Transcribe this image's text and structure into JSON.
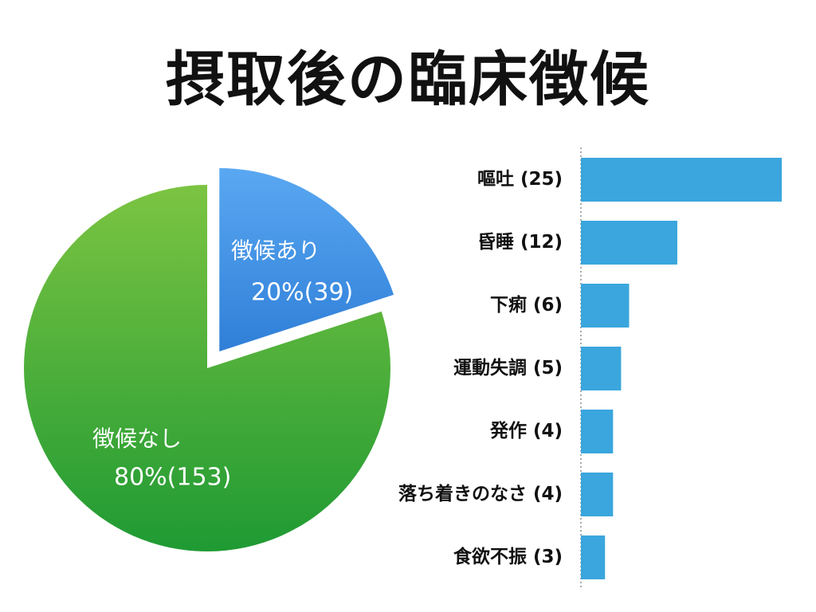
{
  "slide": {
    "title": "摂取後の臨床徴候"
  },
  "chart_data": [
    {
      "type": "pie",
      "slices": [
        {
          "name": "徴候あり",
          "value_label": "20%(39)",
          "percent": 20,
          "count": 39,
          "color": "#2f7fd8",
          "color_light": "#5aa8f2",
          "exploded": true
        },
        {
          "name": "徴候なし",
          "value_label": "80%(153)",
          "percent": 80,
          "count": 153,
          "color": "#1f9a33",
          "color_light": "#7cc442",
          "exploded": false
        }
      ]
    },
    {
      "type": "bar",
      "orientation": "horizontal",
      "color": "#3aa6dd",
      "categories": [
        "嘔吐 (25)",
        "昏睡 (12)",
        "下痢 (6)",
        "運動失調 (5)",
        "発作 (4)",
        "落ち着きのなさ (4)",
        "食欲不振 (3)"
      ],
      "values": [
        25,
        12,
        6,
        5,
        4,
        4,
        3
      ],
      "xlim": [
        0,
        25
      ]
    }
  ]
}
